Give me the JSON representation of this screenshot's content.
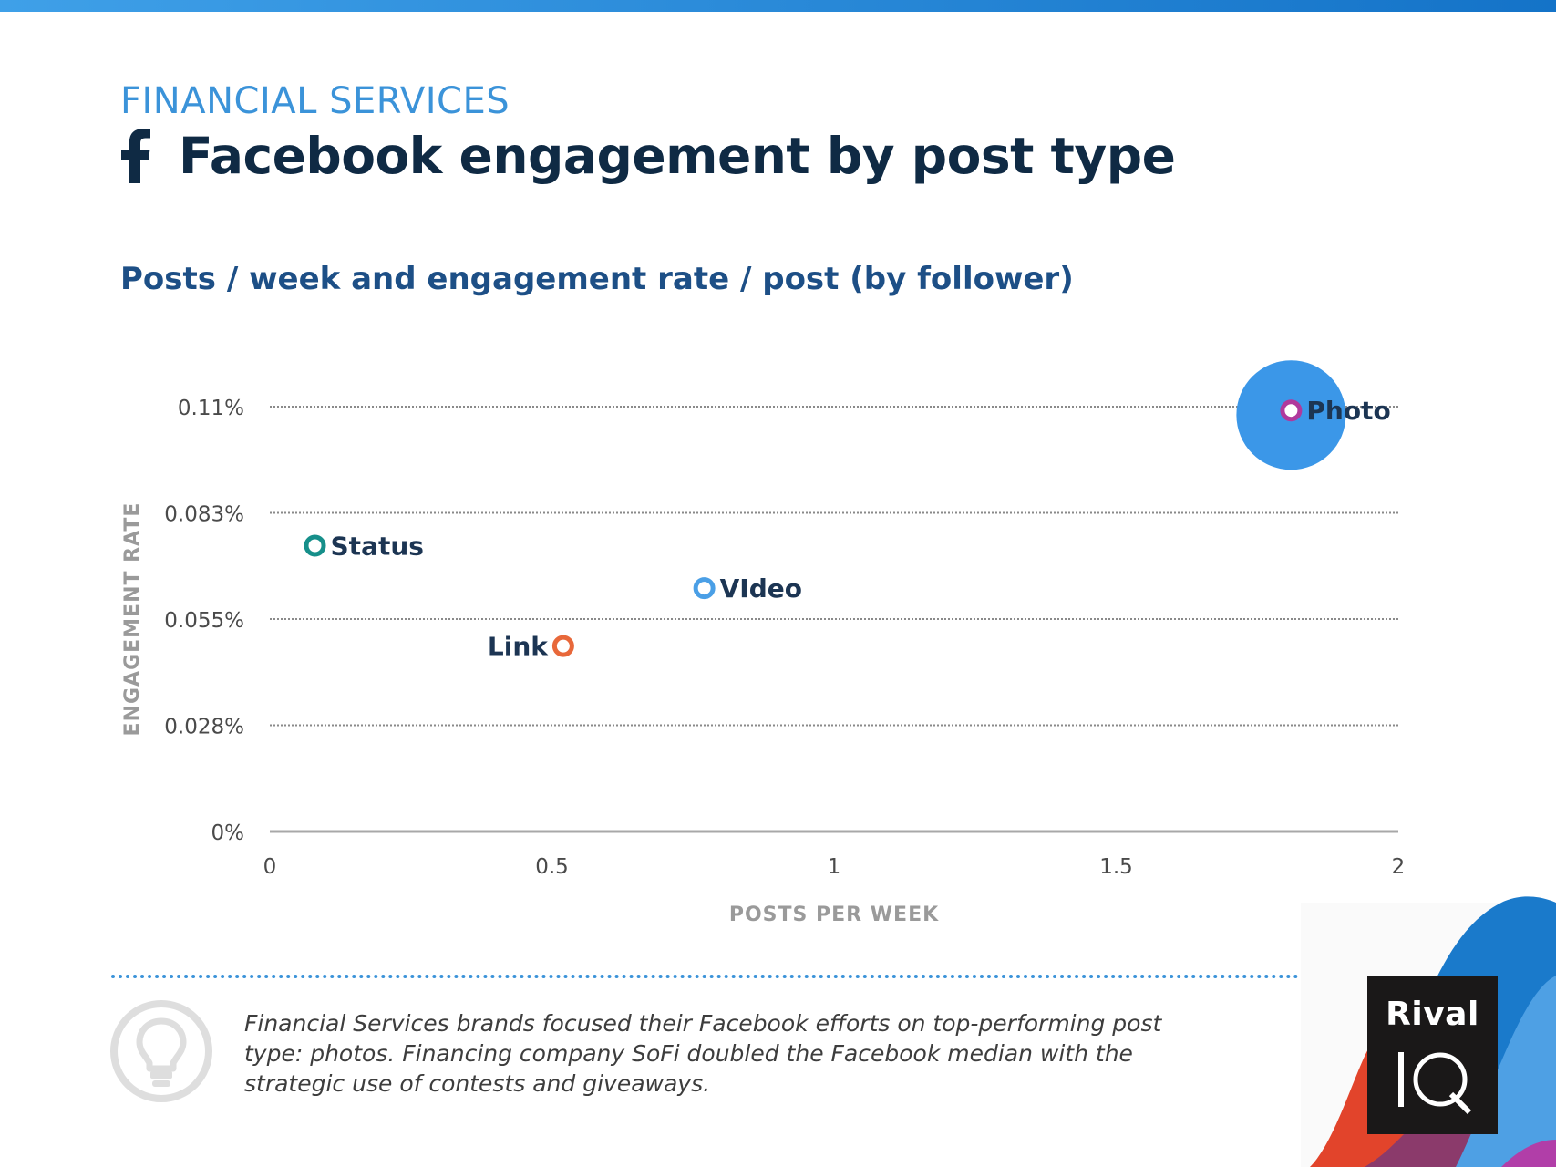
{
  "header": {
    "category": "FINANCIAL SERVICES",
    "title": "Facebook engagement by post type",
    "subtitle": "Posts / week and engagement rate / post (by follower)"
  },
  "chart_data": {
    "type": "scatter",
    "xlabel": "POSTS PER WEEK",
    "ylabel": "ENGAGEMENT RATE",
    "xlim": [
      0,
      2
    ],
    "ylim": [
      0,
      0.11
    ],
    "x_ticks": [
      {
        "value": 0,
        "label": "0"
      },
      {
        "value": 0.5,
        "label": "0.5"
      },
      {
        "value": 1,
        "label": "1"
      },
      {
        "value": 1.5,
        "label": "1.5"
      },
      {
        "value": 2,
        "label": "2"
      }
    ],
    "y_ticks": [
      {
        "value": 0,
        "label": "0%"
      },
      {
        "value": 0.0275,
        "label": "0.028%"
      },
      {
        "value": 0.055,
        "label": "0.055%"
      },
      {
        "value": 0.0825,
        "label": "0.083%"
      },
      {
        "value": 0.11,
        "label": "0.11%"
      }
    ],
    "grid": "horizontal dotted",
    "points": [
      {
        "label": "Photo",
        "x": 1.81,
        "y": 0.109,
        "color": "#b0399c",
        "highlight": "#3b97e8",
        "label_side": "right"
      },
      {
        "label": "Status",
        "x": 0.08,
        "y": 0.074,
        "color": "#168f8a",
        "label_side": "right"
      },
      {
        "label": "VIdeo",
        "x": 0.77,
        "y": 0.063,
        "color": "#4a9fe6",
        "label_side": "right"
      },
      {
        "label": "Link",
        "x": 0.52,
        "y": 0.048,
        "color": "#e8683a",
        "label_side": "left"
      }
    ]
  },
  "footer": {
    "note": "Financial Services brands focused their Facebook efforts on top-performing post type: photos. Financing company SoFi doubled the Facebook median with the strategic use of contests and giveaways.",
    "logo_top": "Rival",
    "logo_bottom": "IQ"
  },
  "icons": [
    "facebook-icon",
    "lightbulb-icon"
  ]
}
